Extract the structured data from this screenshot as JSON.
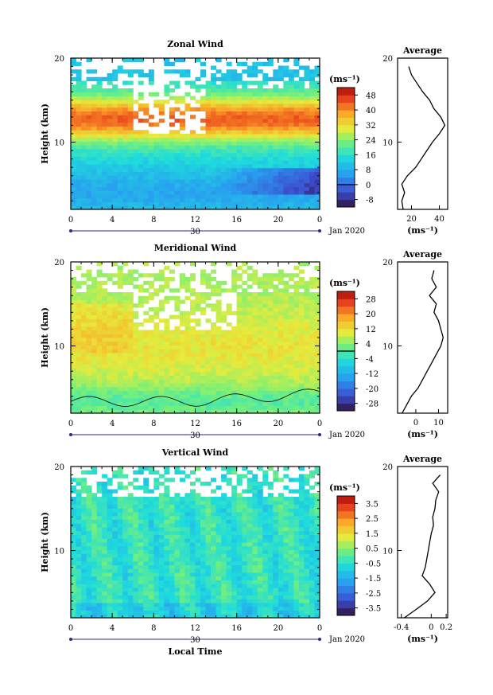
{
  "colors": {
    "axis": "#000000",
    "background": "#ffffff"
  },
  "common": {
    "xaxis_ticks": [
      "0",
      "4",
      "8",
      "12",
      "16",
      "20",
      "0"
    ],
    "date_day": "30",
    "date_label": "Jan 2020",
    "xlabel": "Local Time",
    "ylabel": "Height (km)",
    "ytick_labels": [
      "20",
      "10"
    ],
    "unit_label": "(ms⁻¹)",
    "profile_title": "Average"
  },
  "chart_data": [
    {
      "type": "heatmap",
      "title": "Zonal Wind",
      "xlabel": "",
      "ylabel": "Height (km)",
      "xlim": [
        0,
        24
      ],
      "ylim": [
        2,
        20
      ],
      "colorbar": {
        "ticks": [
          "-8",
          "0",
          "8",
          "16",
          "24",
          "32",
          "40",
          "48"
        ],
        "range": [
          -12,
          52
        ]
      },
      "profile": {
        "xticks": [
          "20",
          "40"
        ],
        "xlim": [
          10,
          46
        ],
        "heights": [
          2,
          3,
          4,
          5,
          6,
          7,
          8,
          9,
          10,
          11,
          12,
          13,
          14,
          15,
          16,
          17,
          18,
          19
        ],
        "values": [
          14,
          13,
          15,
          13,
          17,
          23,
          27,
          31,
          35,
          40,
          44,
          41,
          36,
          33,
          28,
          24,
          20,
          18
        ]
      }
    },
    {
      "type": "heatmap",
      "title": "Meridional Wind",
      "xlabel": "",
      "ylabel": "Height (km)",
      "xlim": [
        0,
        24
      ],
      "ylim": [
        2,
        20
      ],
      "colorbar": {
        "ticks": [
          "-28",
          "-20",
          "-12",
          "-4",
          "4",
          "12",
          "20",
          "28"
        ],
        "range": [
          -32,
          32
        ]
      },
      "profile": {
        "xticks": [
          "0",
          "10"
        ],
        "xlim": [
          -8,
          14
        ],
        "heights": [
          2,
          3,
          4,
          5,
          6,
          7,
          8,
          9,
          10,
          11,
          12,
          13,
          14,
          15,
          16,
          17,
          18,
          19
        ],
        "values": [
          -6,
          -4,
          -2,
          1,
          3,
          5,
          7,
          9,
          11,
          12,
          11,
          10,
          8,
          9,
          6,
          9,
          7,
          8
        ]
      }
    },
    {
      "type": "heatmap",
      "title": "Vertical Wind",
      "xlabel": "Local Time",
      "ylabel": "Height (km)",
      "xlim": [
        0,
        24
      ],
      "ylim": [
        2,
        20
      ],
      "colorbar": {
        "ticks": [
          "-3.5",
          "-2.5",
          "-1.5",
          "-0.5",
          "0.5",
          "1.5",
          "2.5",
          "3.5"
        ],
        "range": [
          -4,
          4
        ]
      },
      "profile": {
        "xticks": [
          "-0.4",
          "0",
          "0.2"
        ],
        "xlim": [
          -0.45,
          0.22
        ],
        "heights": [
          2,
          3,
          4,
          5,
          6,
          7,
          8,
          9,
          10,
          11,
          12,
          13,
          14,
          15,
          16,
          17,
          18,
          19
        ],
        "values": [
          -0.36,
          -0.2,
          -0.05,
          0.05,
          -0.02,
          -0.12,
          -0.08,
          -0.06,
          -0.04,
          -0.02,
          0.0,
          0.03,
          0.02,
          0.05,
          0.06,
          0.1,
          0.02,
          0.12
        ]
      }
    }
  ]
}
